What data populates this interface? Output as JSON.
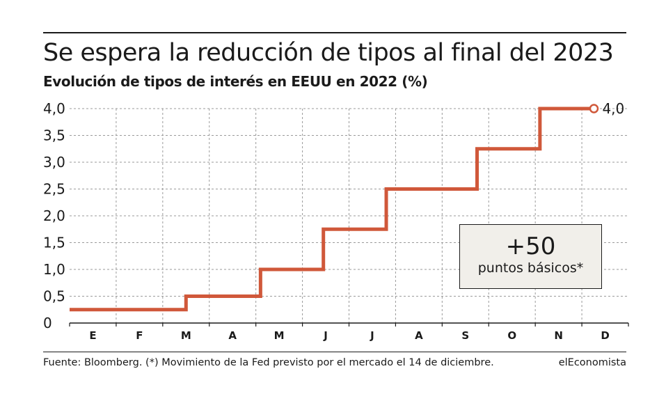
{
  "chart_data": {
    "type": "line",
    "title": "Se espera la reducción de tipos al final del 2023",
    "subtitle": "Evolución de tipos de interés en EEUU en 2022 (%)",
    "ylim": [
      0,
      4.0
    ],
    "yticks": [
      "0",
      "0,5",
      "1,0",
      "1,5",
      "2,0",
      "2,5",
      "3,0",
      "3,5",
      "4,0"
    ],
    "categories": [
      "E",
      "F",
      "M",
      "A",
      "M",
      "J",
      "J",
      "A",
      "S",
      "O",
      "N",
      "D"
    ],
    "series": [
      {
        "color": "#d0583a",
        "points": [
          {
            "x": 0,
            "y": 0.25
          },
          {
            "x": 2.5,
            "y": 0.25
          },
          {
            "x": 2.5,
            "y": 0.5
          },
          {
            "x": 4.1,
            "y": 0.5
          },
          {
            "x": 4.1,
            "y": 1.0
          },
          {
            "x": 5.45,
            "y": 1.0
          },
          {
            "x": 5.45,
            "y": 1.75
          },
          {
            "x": 6.8,
            "y": 1.75
          },
          {
            "x": 6.8,
            "y": 2.5
          },
          {
            "x": 8.75,
            "y": 2.5
          },
          {
            "x": 8.75,
            "y": 3.25
          },
          {
            "x": 10.1,
            "y": 3.25
          },
          {
            "x": 10.1,
            "y": 4.0
          },
          {
            "x": 11.2,
            "y": 4.0
          }
        ]
      }
    ],
    "end_label": "4,0",
    "grid": true
  },
  "callout": {
    "big": "+50",
    "small": "puntos básicos*"
  },
  "source": "Fuente: Bloomberg. (*) Movimiento de la Fed previsto por el mercado el 14 de diciembre.",
  "brand": "elEconomista"
}
